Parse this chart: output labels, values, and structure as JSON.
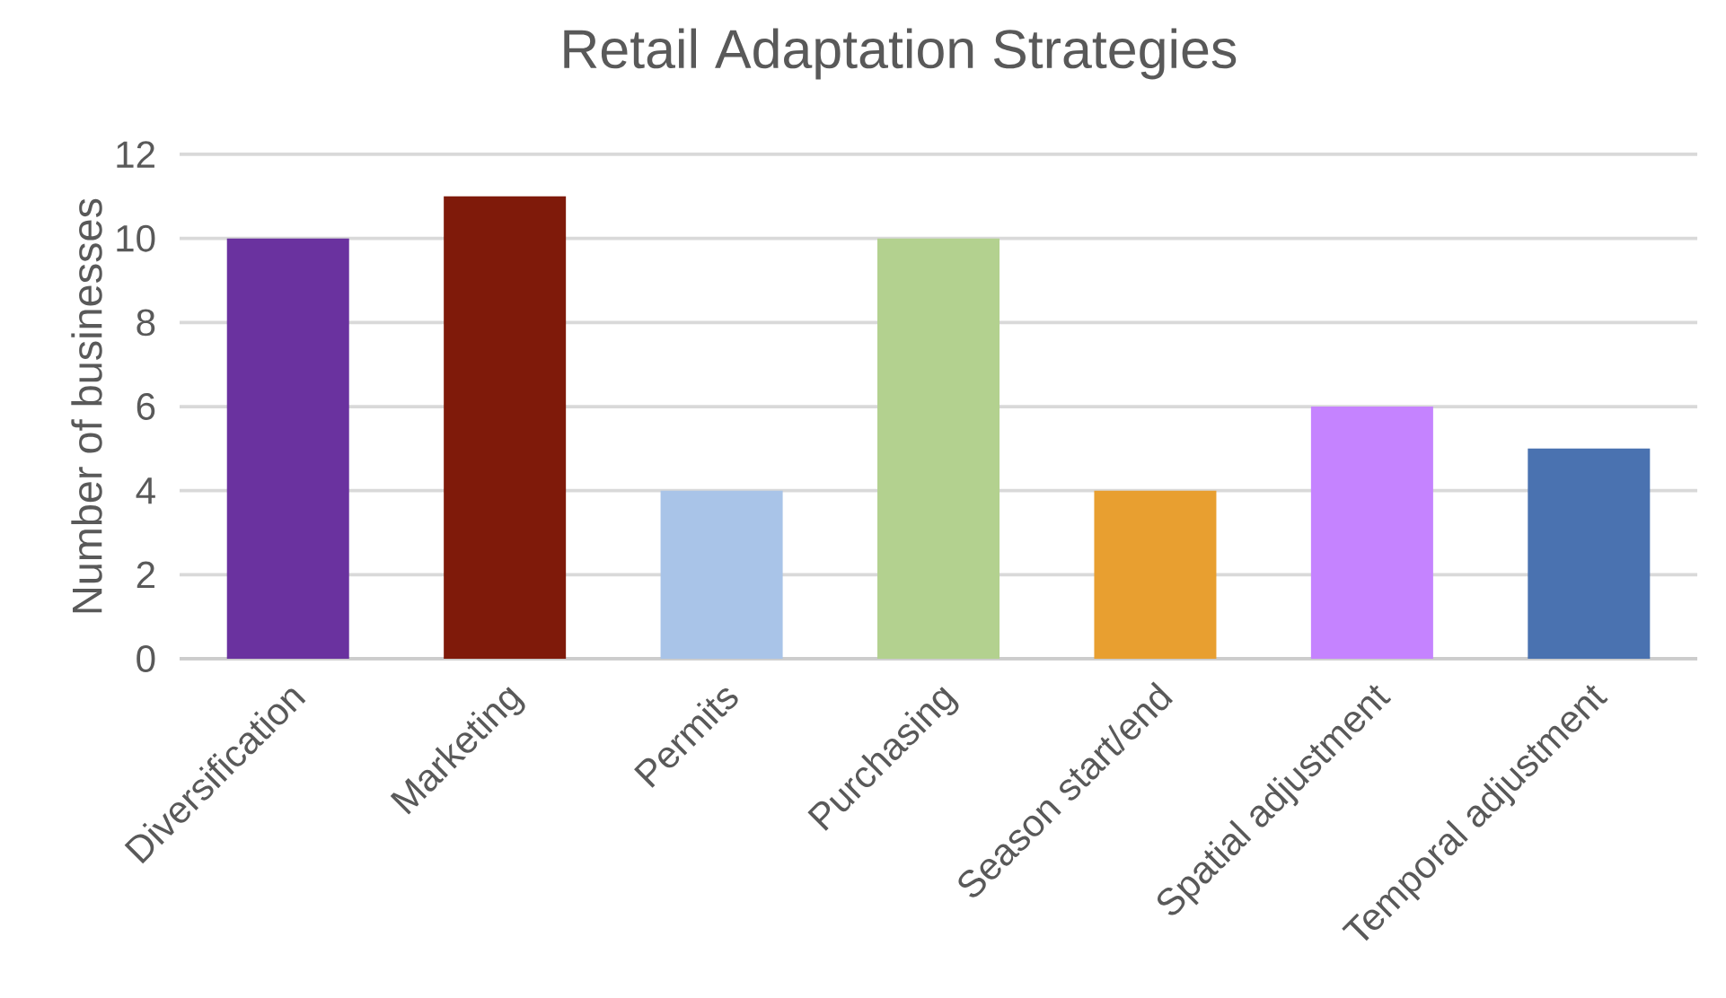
{
  "chart_data": {
    "type": "bar",
    "title": "Retail Adaptation Strategies",
    "ylabel": "Number  of businesses",
    "categories": [
      "Diversification",
      "Marketing",
      "Permits",
      "Purchasing",
      "Season start/end",
      "Spatial adjustment",
      "Temporal adjustment"
    ],
    "values": [
      10,
      11,
      4,
      10,
      4,
      6,
      5
    ],
    "colors": [
      "#6a329f",
      "#7f1a0a",
      "#a9c4e8",
      "#b3d18f",
      "#e89f30",
      "#c583ff",
      "#4a72b0"
    ],
    "ylim": [
      0,
      12
    ],
    "yticks": [
      0,
      2,
      4,
      6,
      8,
      10,
      12
    ],
    "grid": "y"
  }
}
